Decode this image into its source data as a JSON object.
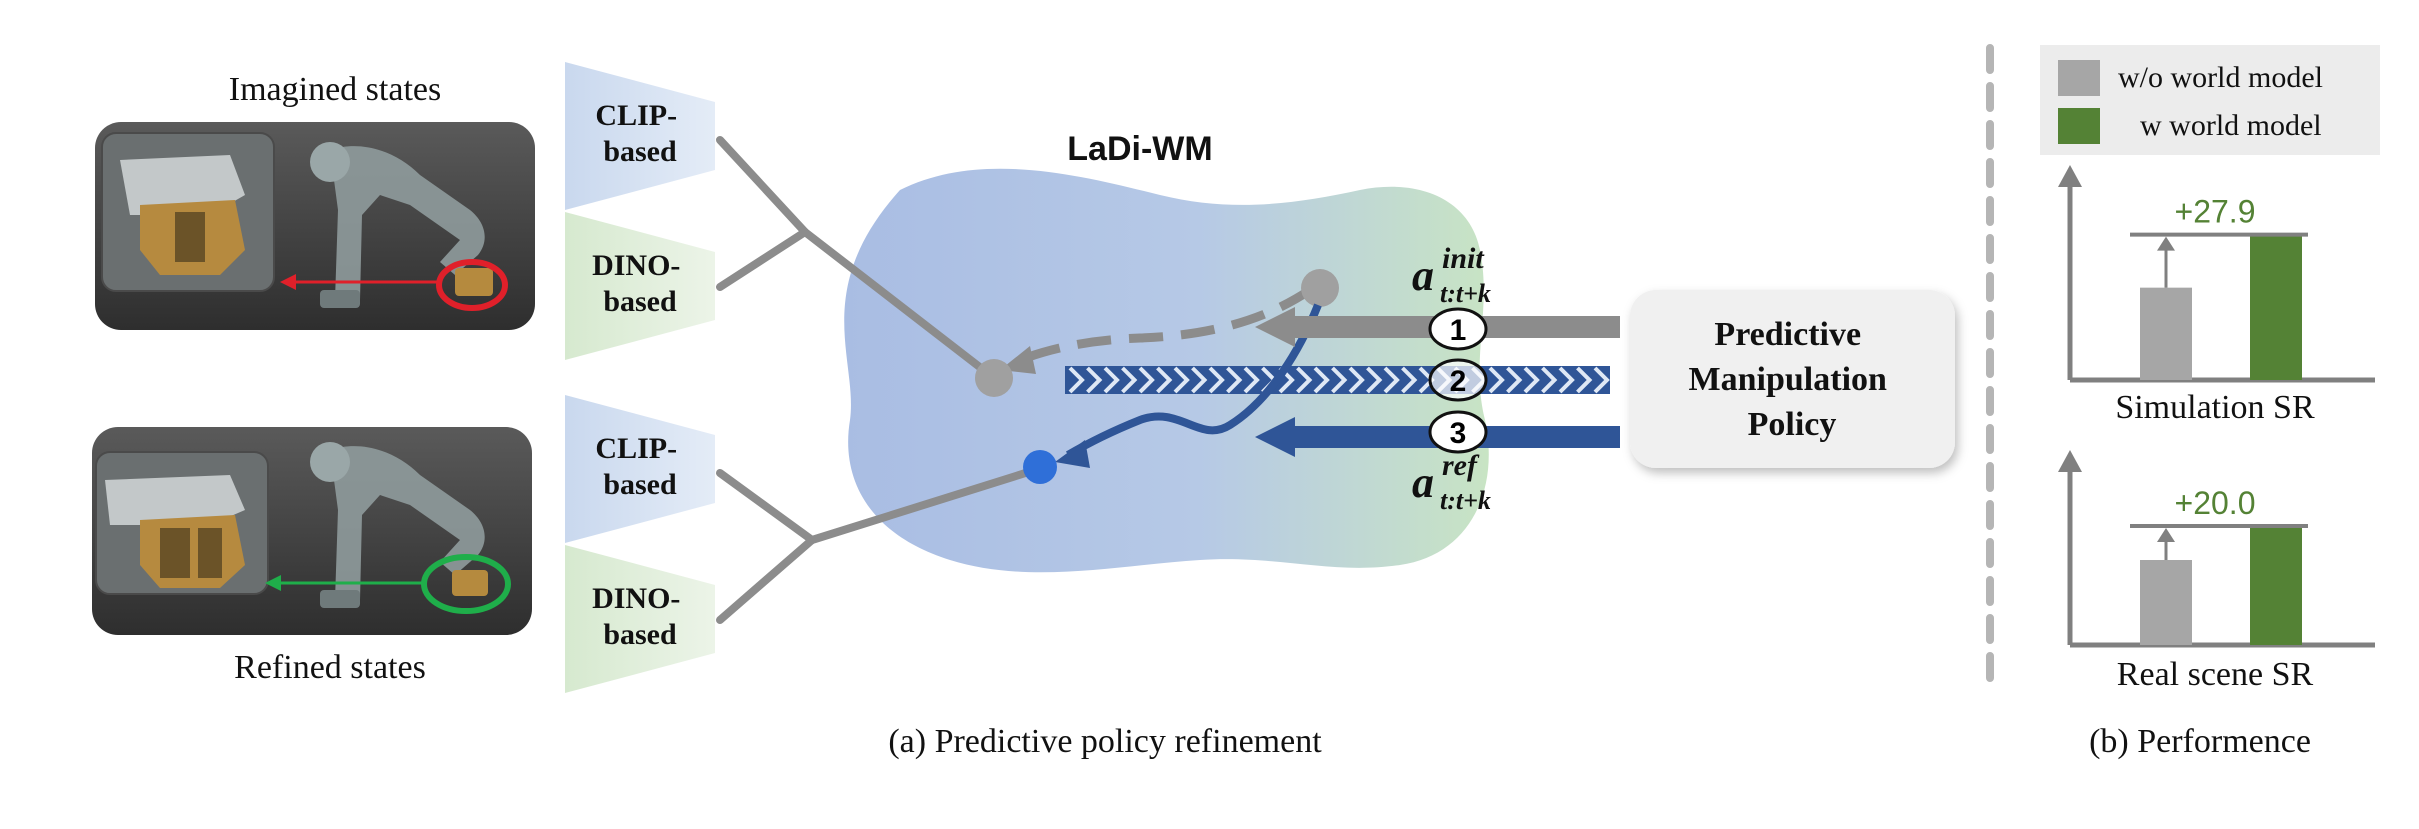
{
  "left_panel": {
    "imagined_label": "Imagined states",
    "refined_label": "Refined states",
    "encoders_top": {
      "clip": [
        "CLIP-",
        "based"
      ],
      "dino": [
        "DINO-",
        "based"
      ]
    },
    "encoders_bottom": {
      "clip": [
        "CLIP-",
        "based"
      ],
      "dino": [
        "DINO-",
        "based"
      ]
    }
  },
  "center": {
    "model_title": "LaDi-WM",
    "policy_box": [
      "Predictive",
      "Manipulation",
      "Policy"
    ],
    "steps": [
      "1",
      "2",
      "3"
    ],
    "action_init": {
      "base": "a",
      "sup": "init",
      "sub": "t:t+k"
    },
    "action_ref": {
      "base": "a",
      "sup": "ref",
      "sub": "t:t+k"
    },
    "caption": "(a) Predictive policy refinement"
  },
  "performance": {
    "caption": "(b) Performence",
    "legend": [
      {
        "label": "w/o world model",
        "color": "#a6a6a6"
      },
      {
        "label": "w world model",
        "color": "#548235"
      }
    ],
    "delta_color": "#548235"
  },
  "chart_data": [
    {
      "type": "bar",
      "title": "",
      "xlabel": "Simulation SR",
      "ylabel": "",
      "categories": [
        "w/o world model",
        "w world model"
      ],
      "values": [
        48.6,
        76.5
      ],
      "annotation": "+27.9",
      "ylim": [
        0,
        100
      ]
    },
    {
      "type": "bar",
      "title": "",
      "xlabel": "Real scene SR",
      "ylabel": "",
      "categories": [
        "w/o world model",
        "w world model"
      ],
      "values": [
        50.0,
        70.0
      ],
      "annotation": "+20.0",
      "ylim": [
        0,
        100
      ]
    }
  ]
}
